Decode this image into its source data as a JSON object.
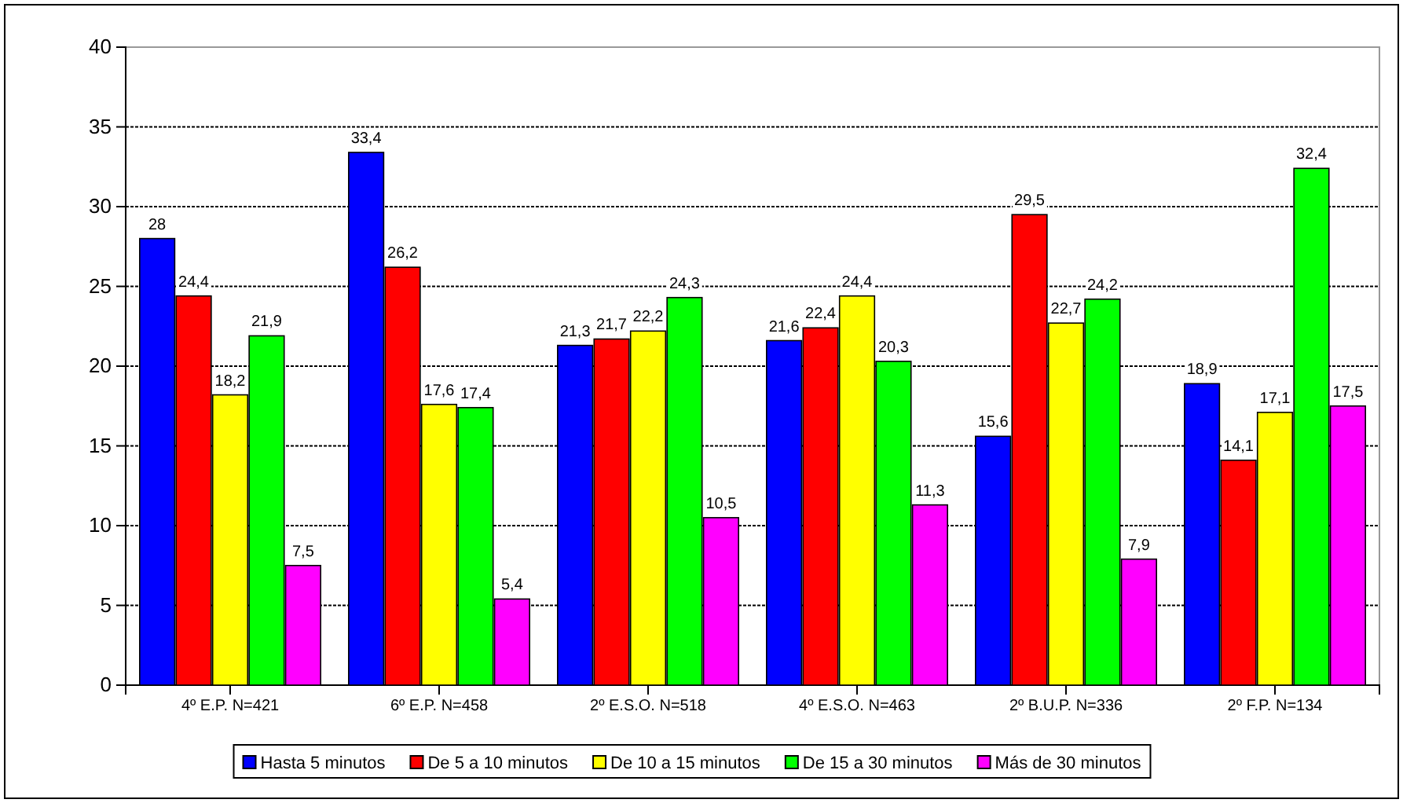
{
  "chart_data": {
    "type": "bar",
    "categories": [
      "4º E.P. N=421",
      "6º E.P. N=458",
      "2º E.S.O. N=518",
      "4º E.S.O. N=463",
      "2º B.U.P. N=336",
      "2º F.P. N=134"
    ],
    "series": [
      {
        "name": "Hasta 5 minutos",
        "color": "#0000ff",
        "values": [
          28,
          33.4,
          21.3,
          21.6,
          15.6,
          18.9
        ],
        "value_labels": [
          "28",
          "33,4",
          "21,3",
          "21,6",
          "15,6",
          "18,9"
        ]
      },
      {
        "name": "De 5 a 10 minutos",
        "color": "#ff0000",
        "values": [
          24.4,
          26.2,
          21.7,
          22.4,
          29.5,
          14.1
        ],
        "value_labels": [
          "24,4",
          "26,2",
          "21,7",
          "22,4",
          "29,5",
          "14,1"
        ]
      },
      {
        "name": "De 10 a 15 minutos",
        "color": "#ffff00",
        "values": [
          18.2,
          17.6,
          22.2,
          24.4,
          22.7,
          17.1
        ],
        "value_labels": [
          "18,2",
          "17,6",
          "22,2",
          "24,4",
          "22,7",
          "17,1"
        ]
      },
      {
        "name": "De 15 a 30 minutos",
        "color": "#00ff00",
        "values": [
          21.9,
          17.4,
          24.3,
          20.3,
          24.2,
          32.4
        ],
        "value_labels": [
          "21,9",
          "17,4",
          "24,3",
          "20,3",
          "24,2",
          "32,4"
        ]
      },
      {
        "name": "Más de 30 minutos",
        "color": "#ff00ff",
        "values": [
          7.5,
          5.4,
          10.5,
          11.3,
          7.9,
          17.5
        ],
        "value_labels": [
          "7,5",
          "5,4",
          "10,5",
          "11,3",
          "7,9",
          "17,5"
        ]
      }
    ],
    "ylim": [
      0,
      40
    ],
    "yticks": [
      0,
      5,
      10,
      15,
      20,
      25,
      30,
      35,
      40
    ],
    "grid": "y",
    "legend": "bottom"
  }
}
